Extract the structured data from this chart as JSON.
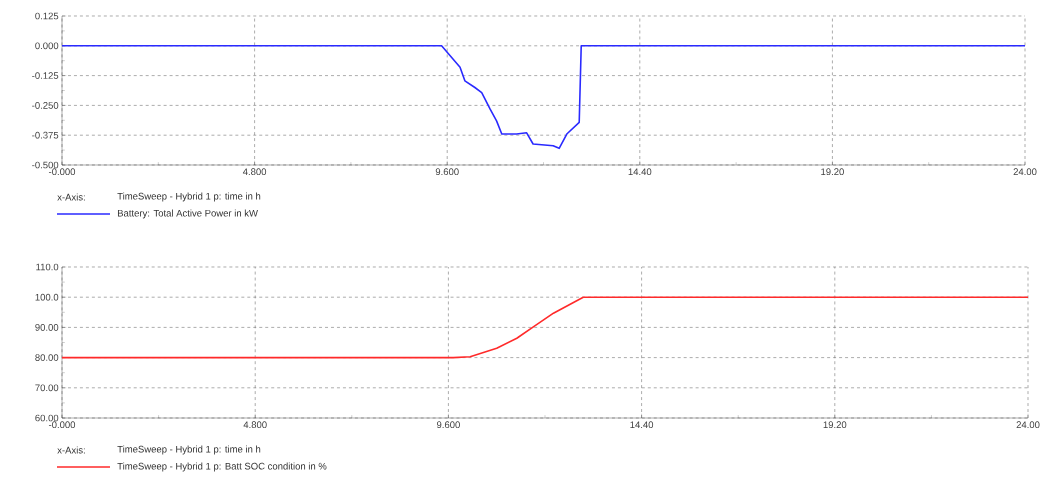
{
  "chart_data": [
    {
      "type": "line",
      "xlabel": "TimeSweep - Hybrid 1 p: time in h",
      "annotations": [
        "x-Axis:"
      ],
      "grid": true,
      "legend": "bottom left",
      "xlim": [
        0,
        24
      ],
      "ylim": [
        -0.5,
        0.125
      ],
      "xticks": [
        {
          "value": 0,
          "label": "-0.000"
        },
        {
          "value": 4.8,
          "label": "4.800"
        },
        {
          "value": 9.6,
          "label": "9.600"
        },
        {
          "value": 14.4,
          "label": "14.40"
        },
        {
          "value": 19.2,
          "label": "19.20"
        },
        {
          "value": 24,
          "label": "24.00"
        }
      ],
      "yticks": [
        {
          "value": -0.5,
          "label": "-0.500"
        },
        {
          "value": -0.375,
          "label": "-0.375"
        },
        {
          "value": -0.25,
          "label": "-0.250"
        },
        {
          "value": -0.125,
          "label": "-0.125"
        },
        {
          "value": 0,
          "label": "0.000"
        },
        {
          "value": 0.125,
          "label": "0.125"
        }
      ],
      "series": [
        {
          "name": "Battery: Total Active Power in kW",
          "color": "#2a2aff",
          "x": [
            0,
            9.46,
            9.92,
            10.04,
            10.29,
            10.46,
            10.67,
            10.83,
            10.96,
            11.33,
            11.58,
            11.74,
            12.24,
            12.39,
            12.58,
            12.89,
            12.94,
            24
          ],
          "values": [
            0,
            0,
            -0.09,
            -0.147,
            -0.175,
            -0.196,
            -0.266,
            -0.315,
            -0.37,
            -0.37,
            -0.365,
            -0.412,
            -0.419,
            -0.43,
            -0.37,
            -0.321,
            0,
            0
          ]
        }
      ]
    },
    {
      "type": "line",
      "xlabel": "TimeSweep - Hybrid 1 p: time in h",
      "annotations": [
        "x-Axis:"
      ],
      "grid": true,
      "legend": "bottom left",
      "xlim": [
        0,
        24
      ],
      "ylim": [
        60,
        110
      ],
      "xticks": [
        {
          "value": 0,
          "label": "-0.000"
        },
        {
          "value": 4.8,
          "label": "4.800"
        },
        {
          "value": 9.6,
          "label": "9.600"
        },
        {
          "value": 14.4,
          "label": "14.40"
        },
        {
          "value": 19.2,
          "label": "19.20"
        },
        {
          "value": 24,
          "label": "24.00"
        }
      ],
      "yticks": [
        {
          "value": 60,
          "label": "60.00"
        },
        {
          "value": 70,
          "label": "70.00"
        },
        {
          "value": 80,
          "label": "80.00"
        },
        {
          "value": 90,
          "label": "90.00"
        },
        {
          "value": 100,
          "label": "100.0"
        },
        {
          "value": 110,
          "label": "110.0"
        }
      ],
      "series": [
        {
          "name": "TimeSweep - Hybrid 1 p: Batt SOC condition in %",
          "color": "#ff2a2a",
          "x": [
            0,
            9.72,
            10.14,
            10.8,
            11.3,
            11.71,
            12.21,
            12.95,
            24
          ],
          "values": [
            80,
            80,
            80.3,
            83.1,
            86.4,
            90.2,
            94.7,
            100,
            100
          ]
        }
      ]
    }
  ]
}
